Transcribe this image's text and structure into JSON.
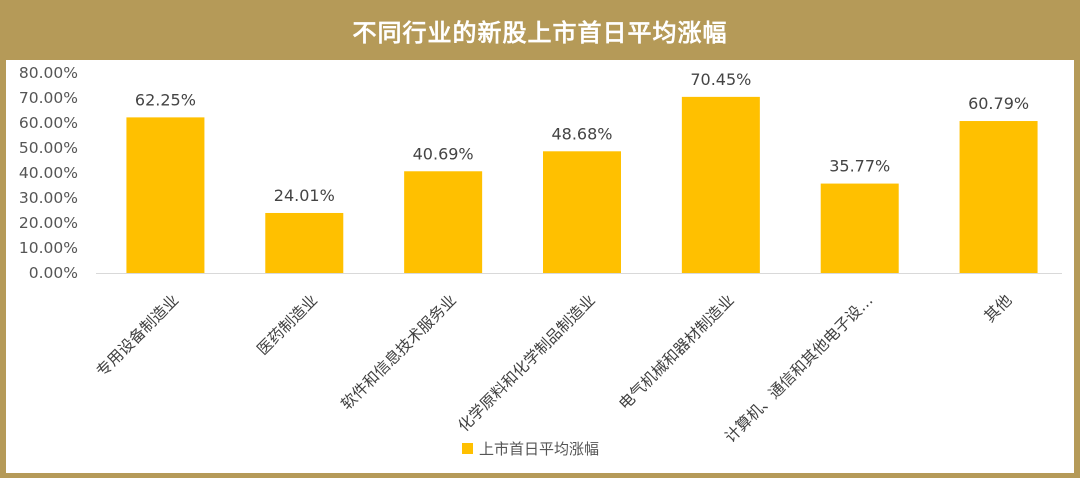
{
  "title": "不同行业的新股上市首日平均涨幅",
  "colors": {
    "frame": "#b59a58",
    "bar": "#ffc000",
    "axis": "#d9d9d9"
  },
  "chart_data": {
    "type": "bar",
    "title": "不同行业的新股上市首日平均涨幅",
    "categories": [
      "专用设备制造业",
      "医药制造业",
      "软件和信息技术服务业",
      "化学原料和化学制品制造业",
      "电气机械和器材制造业",
      "计算机、通信和其他电子设…",
      "其他"
    ],
    "series": [
      {
        "name": "上市首日平均涨幅",
        "values": [
          62.25,
          24.01,
          40.69,
          48.68,
          70.45,
          35.77,
          60.79
        ]
      }
    ],
    "data_labels": [
      "62.25%",
      "24.01%",
      "40.69%",
      "48.68%",
      "70.45%",
      "35.77%",
      "60.79%"
    ],
    "ylim": [
      0,
      80
    ],
    "y_ticks": [
      "0.00%",
      "10.00%",
      "20.00%",
      "30.00%",
      "40.00%",
      "50.00%",
      "60.00%",
      "70.00%",
      "80.00%"
    ],
    "y_unit": "%",
    "grid": false,
    "legend_position": "bottom"
  }
}
